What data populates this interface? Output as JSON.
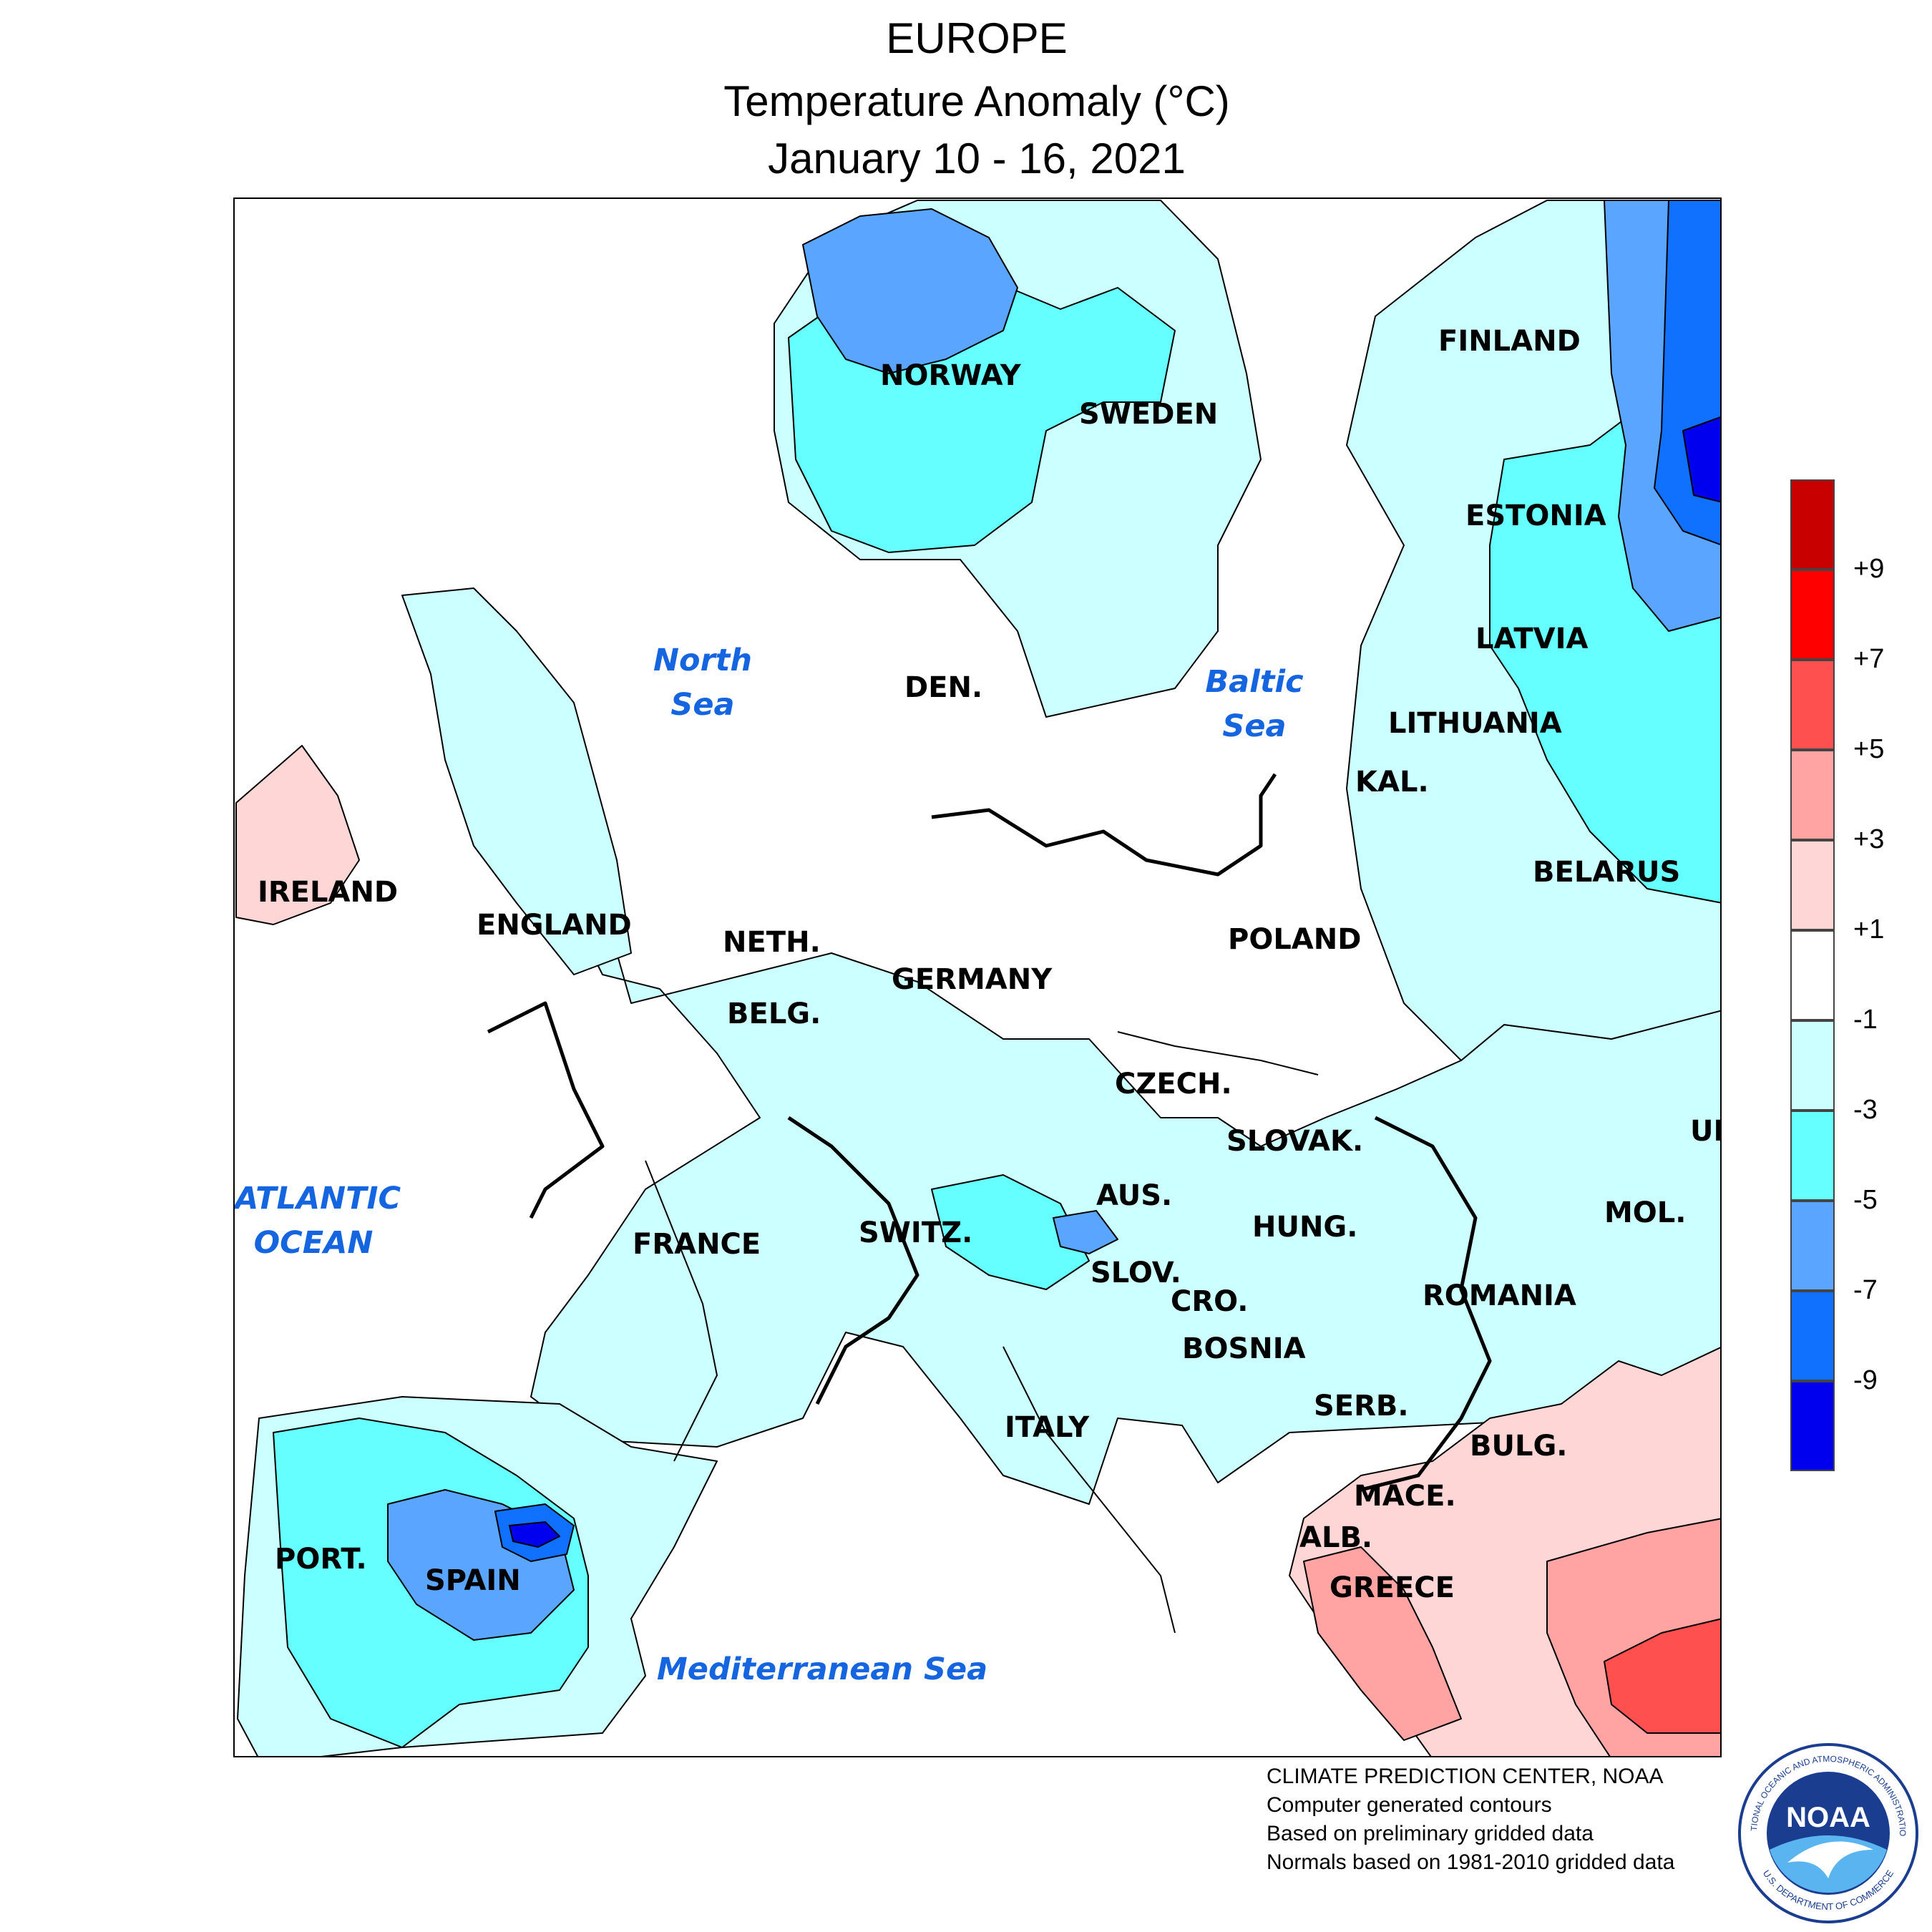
{
  "header": {
    "title": "EUROPE",
    "subtitle": "Temperature Anomaly (°C)",
    "period": "January 10 - 16, 2021"
  },
  "map": {
    "countries": {
      "finland": "FINLAND",
      "norway": "NORWAY",
      "sweden": "SWEDEN",
      "estonia": "ESTONIA",
      "latvia": "LATVIA",
      "lithuania": "LITHUANIA",
      "kaliningrad": "KAL.",
      "belarus": "BELARUS",
      "denmark": "DEN.",
      "ireland": "IRELAND",
      "england": "ENGLAND",
      "netherlands": "NETH.",
      "belgium": "BELG.",
      "germany": "GERMANY",
      "poland": "POLAND",
      "czech": "CZECH.",
      "slovakia": "SLOVAK.",
      "ukraine": "UK",
      "moldova": "MOL.",
      "austria": "AUS.",
      "switzerland": "SWITZ.",
      "hungary": "HUNG.",
      "slovenia": "SLOV.",
      "croatia": "CRO.",
      "romania": "ROMANIA",
      "bosnia": "BOSNIA",
      "serbia": "SERB.",
      "bulgaria": "BULG.",
      "macedonia": "MACE.",
      "albania": "ALB.",
      "greece": "GREECE",
      "france": "FRANCE",
      "italy": "ITALY",
      "portugal": "PORT.",
      "spain": "SPAIN"
    },
    "seas": {
      "north_sea_1": "North",
      "north_sea_2": "Sea",
      "baltic_sea_1": "Baltic",
      "baltic_sea_2": "Sea",
      "atlantic_1": "ATLANTIC",
      "atlantic_2": "OCEAN",
      "mediterranean": "Mediterranean Sea"
    }
  },
  "legend": {
    "unit": "°C",
    "bins": [
      {
        "range": "above +9",
        "color": "#c80000"
      },
      {
        "range": "+7 to +9",
        "color": "#ff0000"
      },
      {
        "range": "+5 to +7",
        "color": "#ff5050"
      },
      {
        "range": "+3 to +5",
        "color": "#ffa3a3"
      },
      {
        "range": "+1 to +3",
        "color": "#ffd6d6"
      },
      {
        "range": "-1 to +1",
        "color": "#ffffff"
      },
      {
        "range": "-3 to -1",
        "color": "#ccffff"
      },
      {
        "range": "-5 to -3",
        "color": "#66ffff"
      },
      {
        "range": "-7 to -5",
        "color": "#5aa5ff"
      },
      {
        "range": "-9 to -7",
        "color": "#1070ff"
      },
      {
        "range": "below -9",
        "color": "#0000ee"
      }
    ],
    "labels": [
      "+9",
      "+7",
      "+5",
      "+3",
      "+1",
      "-1",
      "-3",
      "-5",
      "-7",
      "-9"
    ]
  },
  "credits": {
    "line1": "CLIMATE PREDICTION CENTER, NOAA",
    "line2": "Computer generated contours",
    "line3": "Based on preliminary gridded data",
    "line4": "Normals based on 1981-2010 gridded data"
  },
  "logo": {
    "name": "NOAA",
    "ring_text_top": "NATIONAL OCEANIC AND ATMOSPHERIC ADMINISTRATION",
    "ring_text_bottom": "U.S. DEPARTMENT OF COMMERCE"
  },
  "colors": {
    "sea_label": "#1565e0",
    "light_cyan": "#ccffff",
    "cyan": "#66ffff",
    "medium_blue": "#5aa5ff",
    "blue": "#1070ff",
    "dark_blue": "#0000ee",
    "light_pink": "#ffd6d6",
    "pink": "#ffa3a3",
    "red": "#ff5050"
  }
}
